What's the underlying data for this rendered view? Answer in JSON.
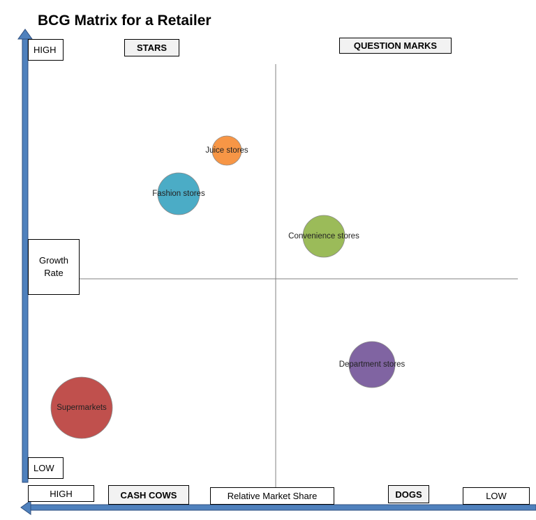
{
  "title": "BCG Matrix for a Retailer",
  "quadrants": {
    "stars": "STARS",
    "question_marks": "QUESTION MARKS",
    "cash_cows": "CASH COWS",
    "dogs": "DOGS"
  },
  "axes": {
    "y_label": "Growth Rate",
    "y_high": "HIGH",
    "y_low": "LOW",
    "x_label": "Relative Market Share",
    "x_high": "HIGH",
    "x_low": "LOW"
  },
  "colors": {
    "axis_arrow": "#4f81bd",
    "axis_arrow_border": "#2f4f7f"
  },
  "bubbles": [
    {
      "label": "Juice stores",
      "color": "#f79646"
    },
    {
      "label": "Fashion stores",
      "color": "#4bacc6"
    },
    {
      "label": "Convenience stores",
      "color": "#9bbb59"
    },
    {
      "label": "Department stores",
      "color": "#8064a2"
    },
    {
      "label": "Supermarkets",
      "color": "#c0504d"
    }
  ]
}
